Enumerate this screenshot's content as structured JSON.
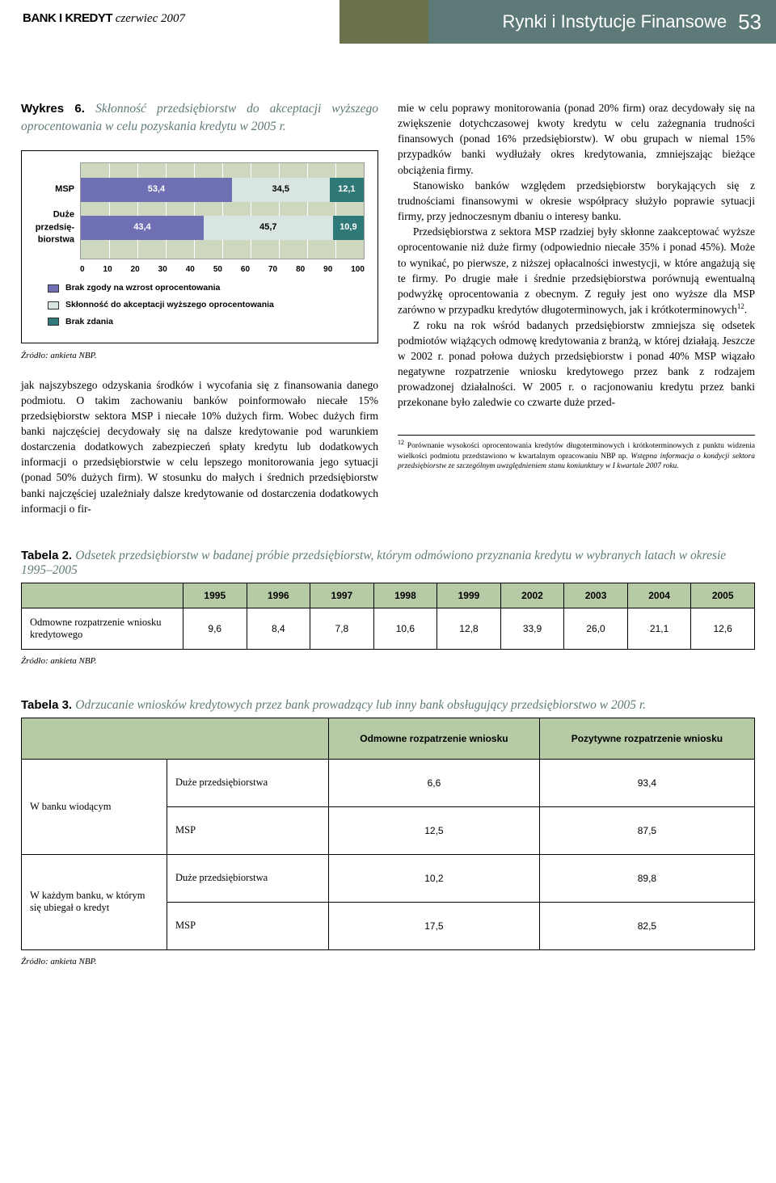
{
  "header": {
    "journal_bold": "BANK I KREDYT",
    "journal_issue": "czerwiec 2007",
    "section": "Rynki i Instytucje Finansowe",
    "page": "53"
  },
  "chart": {
    "label": "Wykres 6.",
    "title": "Skłonność przedsiębiorstw do akceptacji wyższego oprocentowania w celu pozyskania kredytu w 2005 r.",
    "type": "stacked-horizontal-bar",
    "xlim": [
      0,
      100
    ],
    "xtick_step": 10,
    "xticks": [
      "0",
      "10",
      "20",
      "30",
      "40",
      "50",
      "60",
      "70",
      "80",
      "90",
      "100"
    ],
    "background_color": "#cdd8bf",
    "grid_color": "#ffffff",
    "bars": [
      {
        "label": "MSP",
        "top_pct": 15,
        "segments": [
          {
            "value": 53.4,
            "label": "53,4",
            "color": "#6f6fb3",
            "text_color": "#ffffff"
          },
          {
            "value": 34.5,
            "label": "34,5",
            "color": "#d8e5e3",
            "text_color": "#000000"
          },
          {
            "value": 12.1,
            "label": "12,1",
            "color": "#2f7a78",
            "text_color": "#ffffff"
          }
        ]
      },
      {
        "label": "Duże przedsię-biorstwa",
        "top_pct": 55,
        "segments": [
          {
            "value": 43.4,
            "label": "43,4",
            "color": "#6f6fb3",
            "text_color": "#ffffff"
          },
          {
            "value": 45.7,
            "label": "45,7",
            "color": "#d8e5e3",
            "text_color": "#000000"
          },
          {
            "value": 10.9,
            "label": "10,9",
            "color": "#2f7a78",
            "text_color": "#ffffff"
          }
        ]
      }
    ],
    "legend": [
      {
        "color": "#6f6fb3",
        "label": "Brak zgody na wzrost oprocentowania"
      },
      {
        "color": "#d8e5e3",
        "label": "Skłonność do akceptacji wyższego oprocentowania"
      },
      {
        "color": "#2f7a78",
        "label": "Brak zdania"
      }
    ],
    "source": "Źródło: ankieta NBP."
  },
  "body": {
    "left_para": "jak najszybszego odzyskania środków i wycofania się z finansowania danego podmiotu. O takim zachowaniu banków poinformowało niecałe 15% przedsiębiorstw sektora MSP i niecałe 10% dużych firm. Wobec dużych firm banki najczęściej decydowały się na dalsze kredytowanie pod warunkiem dostarczenia dodatkowych zabezpieczeń spłaty kredytu lub dodatkowych informacji o przedsiębiorstwie w celu lepszego monitorowania jego sytuacji (ponad 50% dużych firm). W stosunku do małych i średnich przedsiębiorstw banki najczęściej uzależniały dalsze kredytowanie od dostarczenia dodatkowych informacji o fir-",
    "right_para1": "mie w celu poprawy monitorowania (ponad 20% firm) oraz decydowały się na zwiększenie dotychczasowej kwoty kredytu w celu zażegnania trudności finansowych (ponad 16% przedsiębiorstw). W obu grupach w niemal 15% przypadków banki wydłużały okres kredytowania, zmniejszając bieżące obciążenia firmy.",
    "right_para2": "Stanowisko banków względem przedsiębiorstw borykających się z trudnościami finansowymi w okresie współpracy służyło poprawie sytuacji firmy, przy jednoczesnym dbaniu o interesy banku.",
    "right_para3_a": "Przedsiębiorstwa z sektora MSP rzadziej były skłonne zaakceptować wyższe oprocentowanie niż duże firmy (odpowiednio niecałe 35% i ponad 45%). Może to wynikać, po pierwsze, z niższej opłacalności inwestycji, w które angażują się te firmy. Po drugie małe i średnie przedsiębiorstwa porównują ewentualną podwyżkę oprocentowania z obecnym. Z reguły jest ono wyższe dla MSP zarówno w przypadku kredytów długoterminowych, jak i krótkoterminowych",
    "right_para3_b": ".",
    "right_para4": "Z roku na rok wśród badanych przedsiębiorstw zmniejsza się odsetek podmiotów wiążących odmowę kredytowania z branżą, w której działają. Jeszcze w 2002 r. ponad połowa dużych przedsiębiorstw i ponad 40% MSP wiązało negatywne rozpatrzenie wniosku kredytowego przez bank z rodzajem prowadzonej działalności. W 2005 r. o racjonowaniu kredytu przez banki przekonane było zaledwie co czwarte duże przed-",
    "footnote_num": "12",
    "footnote_text": "Porównanie wysokości oprocentowania kredytów długoterminowych i krótkoterminowych z punktu widzenia wielkości podmiotu przedstawiono w kwartalnym opracowaniu NBP np. ",
    "footnote_italic": "Wstępna informacja o kondycji sektora przedsiębiorstw ze szczególnym uwzględnieniem stanu koniunktury w I kwartale 2007 roku."
  },
  "table2": {
    "label": "Tabela 2.",
    "title": "Odsetek przedsiębiorstw w badanej próbie przedsiębiorstw, którym odmówiono przyznania kredytu w wybranych latach w okresie 1995–2005",
    "columns": [
      "1995",
      "1996",
      "1997",
      "1998",
      "1999",
      "2002",
      "2003",
      "2004",
      "2005"
    ],
    "row_label": "Odmowne rozpatrzenie wniosku kredytowego",
    "values": [
      "9,6",
      "8,4",
      "7,8",
      "10,6",
      "12,8",
      "33,9",
      "26,0",
      "21,1",
      "12,6"
    ],
    "source": "Źródło: ankieta NBP."
  },
  "table3": {
    "label": "Tabela 3.",
    "title": "Odrzucanie wniosków kredytowych przez bank prowadzący lub inny bank obsługujący przedsiębiorstwo w 2005 r.",
    "col1": "Odmowne rozpatrzenie wniosku",
    "col2": "Pozytywne rozpatrzenie wniosku",
    "group1_label": "W banku wiodącym",
    "group2_label": "W każdym banku, w którym się ubiegał o kredyt",
    "sub1": "Duże przedsiębiorstwa",
    "sub2": "MSP",
    "rows": [
      {
        "sub": "Duże przedsiębiorstwa",
        "v1": "6,6",
        "v2": "93,4"
      },
      {
        "sub": "MSP",
        "v1": "12,5",
        "v2": "87,5"
      },
      {
        "sub": "Duże przedsiębiorstwa",
        "v1": "10,2",
        "v2": "89,8"
      },
      {
        "sub": "MSP",
        "v1": "17,5",
        "v2": "82,5"
      }
    ],
    "source": "Źródło: ankieta NBP."
  }
}
